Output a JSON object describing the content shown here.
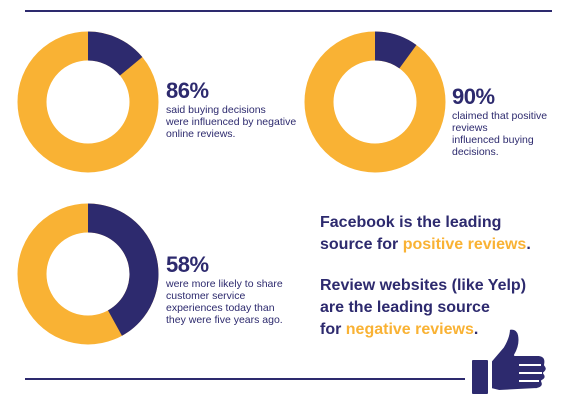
{
  "colors": {
    "navy": "#2d2a6e",
    "orange": "#f9b234"
  },
  "stats": [
    {
      "percent": 86,
      "percent_label": "86%",
      "description_lines": [
        "said buying decisions",
        "were influenced by negative",
        "online reviews."
      ]
    },
    {
      "percent": 90,
      "percent_label": "90%",
      "description_lines": [
        "claimed that positive reviews",
        "influenced buying decisions."
      ]
    },
    {
      "percent": 58,
      "percent_label": "58%",
      "description_lines": [
        "were more likely to share",
        "customer service",
        "experiences today than",
        "they were five years ago."
      ]
    }
  ],
  "callout": {
    "line1": "Facebook is the leading",
    "line2_prefix": "source for ",
    "line2_accent": "positive reviews",
    "line2_suffix": ".",
    "line3": "Review websites (like Yelp)",
    "line4": "are the leading source",
    "line5_prefix": "for ",
    "line5_accent": "negative reviews",
    "line5_suffix": "."
  },
  "icons": {
    "thumb": "thumbs-up-icon"
  }
}
